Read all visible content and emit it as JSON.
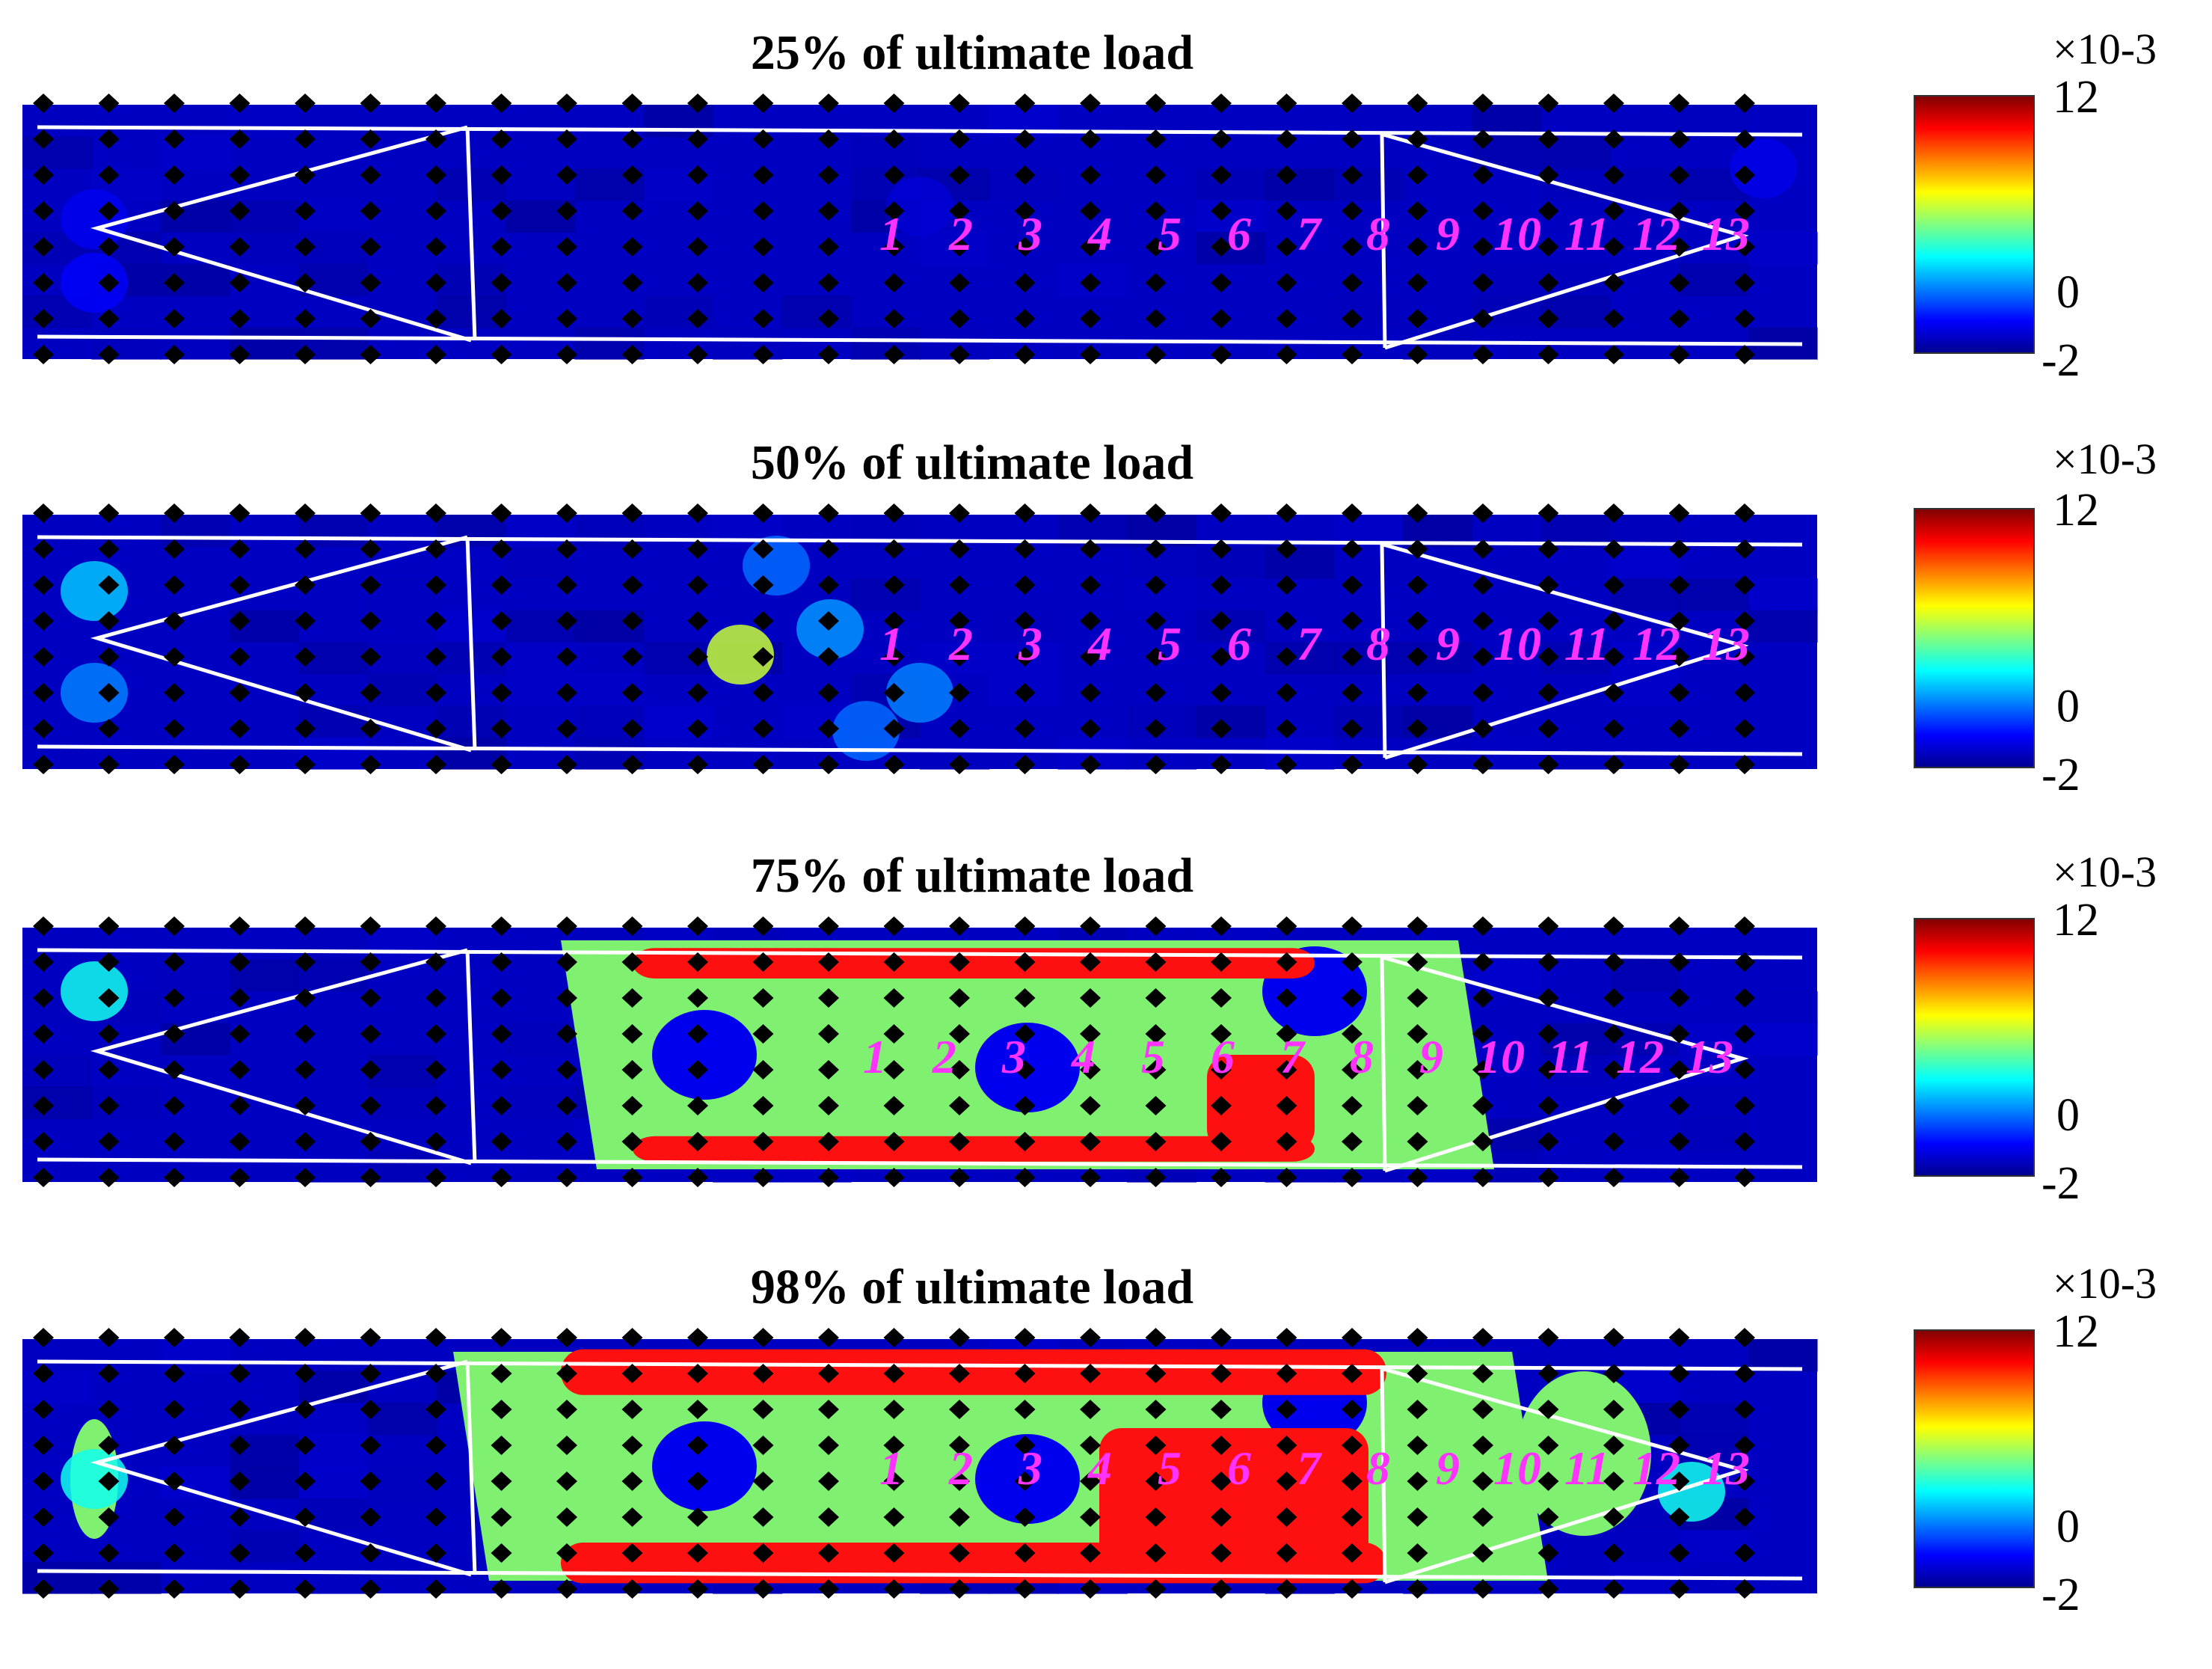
{
  "chart_data": [
    {
      "type": "heatmap",
      "title": "25% of ultimate load",
      "colorbar": {
        "exponent_label": "×10-3",
        "ticks": [
          12,
          0,
          -2
        ],
        "min": -2,
        "max": 12,
        "colormap": "jet"
      },
      "point_labels": [
        "1",
        "2",
        "3",
        "4",
        "5",
        "6",
        "7",
        "8",
        "9",
        "10",
        "11",
        "12",
        "13"
      ],
      "hotspots": [
        [
          0.04,
          0.45,
          -0.5
        ],
        [
          0.04,
          0.7,
          -0.3
        ],
        [
          0.97,
          0.25,
          -0.6
        ],
        [
          0.5,
          0.4,
          -0.9
        ]
      ],
      "red_regions": []
    },
    {
      "type": "heatmap",
      "title": "50% of ultimate load",
      "colorbar": {
        "exponent_label": "×10-3",
        "ticks": [
          12,
          0,
          -2
        ],
        "min": -2,
        "max": 12,
        "colormap": "jet"
      },
      "point_labels": [
        "1",
        "2",
        "3",
        "4",
        "5",
        "6",
        "7",
        "8",
        "9",
        "10",
        "11",
        "12",
        "13"
      ],
      "hotspots": [
        [
          0.04,
          0.3,
          2.5
        ],
        [
          0.04,
          0.7,
          1.5
        ],
        [
          0.4,
          0.55,
          6
        ],
        [
          0.45,
          0.45,
          1.8
        ],
        [
          0.5,
          0.7,
          1.5
        ],
        [
          0.47,
          0.85,
          1.2
        ],
        [
          0.42,
          0.2,
          1.2
        ]
      ],
      "red_regions": []
    },
    {
      "type": "heatmap",
      "title": "75% of ultimate load",
      "colorbar": {
        "exponent_label": "×10-3",
        "ticks": [
          12,
          0,
          -2
        ],
        "min": -2,
        "max": 12,
        "colormap": "jet"
      },
      "point_labels": [
        "1",
        "2",
        "3",
        "4",
        "5",
        "6",
        "7",
        "8",
        "9",
        "10",
        "11",
        "12",
        "13"
      ],
      "hotspots": [
        [
          0.04,
          0.25,
          3.5
        ]
      ],
      "red_regions": [
        [
          0.34,
          0.72,
          0.08,
          0.2
        ],
        [
          0.34,
          0.72,
          0.82,
          0.92
        ],
        [
          0.66,
          0.72,
          0.5,
          0.88
        ]
      ]
    },
    {
      "type": "heatmap",
      "title": "98% of ultimate load",
      "colorbar": {
        "exponent_label": "×10-3",
        "ticks": [
          12,
          0,
          -2
        ],
        "min": -2,
        "max": 12,
        "colormap": "jet"
      },
      "point_labels": [
        "1",
        "2",
        "3",
        "4",
        "5",
        "6",
        "7",
        "8",
        "9",
        "10",
        "11",
        "12",
        "13"
      ],
      "hotspots": [
        [
          0.04,
          0.55,
          3.5
        ],
        [
          0.93,
          0.6,
          3.5
        ]
      ],
      "red_regions": [
        [
          0.3,
          0.76,
          0.04,
          0.22
        ],
        [
          0.3,
          0.76,
          0.8,
          0.96
        ],
        [
          0.6,
          0.75,
          0.35,
          0.9
        ]
      ]
    }
  ]
}
